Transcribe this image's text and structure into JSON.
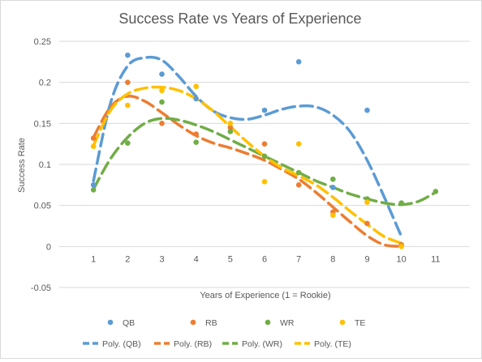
{
  "chart_data": {
    "type": "scatter",
    "title": "Success Rate vs Years of Experience",
    "xlabel": "Years of Experience (1 = Rookie)",
    "ylabel": "Success Rate",
    "xlim": [
      0,
      12
    ],
    "ylim": [
      -0.05,
      0.25
    ],
    "x_ticks": [
      1,
      2,
      3,
      4,
      5,
      6,
      7,
      8,
      9,
      10,
      11
    ],
    "x_tick_labels": [
      "1",
      "2",
      "3",
      "4",
      "5",
      "6",
      "7",
      "8",
      "9",
      "10",
      "11"
    ],
    "y_ticks": [
      -0.05,
      0,
      0.05,
      0.1,
      0.15,
      0.2,
      0.25
    ],
    "y_tick_labels": [
      "-0.05",
      "0",
      "0.05",
      "0.1",
      "0.15",
      "0.2",
      "0.25"
    ],
    "grid": "horizontal",
    "legend_position": "bottom",
    "series": [
      {
        "name": "QB",
        "color": "#5b9bd5",
        "points": [
          [
            1,
            0.075
          ],
          [
            2,
            0.233
          ],
          [
            3,
            0.21
          ],
          [
            4,
            0.18
          ],
          [
            5,
            0.145
          ],
          [
            6,
            0.166
          ],
          [
            7,
            0.225
          ],
          [
            8,
            0.072
          ],
          [
            9,
            0.166
          ],
          [
            10,
            0.002
          ]
        ]
      },
      {
        "name": "RB",
        "color": "#ed7d31",
        "points": [
          [
            1,
            0.132
          ],
          [
            2,
            0.2
          ],
          [
            3,
            0.15
          ],
          [
            4,
            0.137
          ],
          [
            5,
            0.145
          ],
          [
            6,
            0.125
          ],
          [
            7,
            0.075
          ],
          [
            8,
            0.042
          ],
          [
            9,
            0.028
          ],
          [
            10,
            0.002
          ]
        ]
      },
      {
        "name": "WR",
        "color": "#70ad47",
        "points": [
          [
            1,
            0.069
          ],
          [
            2,
            0.126
          ],
          [
            3,
            0.176
          ],
          [
            4,
            0.127
          ],
          [
            5,
            0.14
          ],
          [
            6,
            0.11
          ],
          [
            7,
            0.09
          ],
          [
            8,
            0.082
          ],
          [
            9,
            0.058
          ],
          [
            10,
            0.053
          ],
          [
            11,
            0.067
          ]
        ]
      },
      {
        "name": "TE",
        "color": "#ffc000",
        "points": [
          [
            1,
            0.122
          ],
          [
            2,
            0.172
          ],
          [
            3,
            0.19
          ],
          [
            4,
            0.195
          ],
          [
            5,
            0.15
          ],
          [
            6,
            0.079
          ],
          [
            7,
            0.125
          ],
          [
            8,
            0.038
          ],
          [
            9,
            0.054
          ],
          [
            10,
            0.0
          ]
        ]
      }
    ],
    "trendlines": [
      {
        "name": "Poly. (QB)",
        "color": "#5b9bd5",
        "points": [
          [
            1,
            0.08
          ],
          [
            1.5,
            0.175
          ],
          [
            2,
            0.22
          ],
          [
            2.5,
            0.23
          ],
          [
            3,
            0.227
          ],
          [
            3.5,
            0.207
          ],
          [
            4,
            0.183
          ],
          [
            4.5,
            0.165
          ],
          [
            5,
            0.157
          ],
          [
            5.5,
            0.155
          ],
          [
            6,
            0.16
          ],
          [
            6.5,
            0.167
          ],
          [
            7,
            0.171
          ],
          [
            7.5,
            0.17
          ],
          [
            8,
            0.16
          ],
          [
            8.5,
            0.14
          ],
          [
            9,
            0.105
          ],
          [
            9.5,
            0.06
          ],
          [
            10,
            0.012
          ]
        ]
      },
      {
        "name": "Poly. (RB)",
        "color": "#ed7d31",
        "points": [
          [
            1,
            0.133
          ],
          [
            1.5,
            0.17
          ],
          [
            2,
            0.183
          ],
          [
            2.5,
            0.177
          ],
          [
            3,
            0.163
          ],
          [
            3.5,
            0.148
          ],
          [
            4,
            0.135
          ],
          [
            4.5,
            0.126
          ],
          [
            5,
            0.12
          ],
          [
            5.5,
            0.113
          ],
          [
            6,
            0.105
          ],
          [
            6.5,
            0.094
          ],
          [
            7,
            0.082
          ],
          [
            7.5,
            0.066
          ],
          [
            8,
            0.048
          ],
          [
            8.5,
            0.03
          ],
          [
            9,
            0.013
          ],
          [
            9.5,
            0.002
          ],
          [
            10,
            0.0
          ]
        ]
      },
      {
        "name": "Poly. (WR)",
        "color": "#70ad47",
        "points": [
          [
            1,
            0.07
          ],
          [
            1.5,
            0.107
          ],
          [
            2,
            0.133
          ],
          [
            2.5,
            0.15
          ],
          [
            3,
            0.156
          ],
          [
            3.5,
            0.154
          ],
          [
            4,
            0.148
          ],
          [
            4.5,
            0.14
          ],
          [
            5,
            0.13
          ],
          [
            5.5,
            0.12
          ],
          [
            6,
            0.11
          ],
          [
            6.5,
            0.1
          ],
          [
            7,
            0.09
          ],
          [
            7.5,
            0.08
          ],
          [
            8,
            0.072
          ],
          [
            8.5,
            0.064
          ],
          [
            9,
            0.058
          ],
          [
            9.5,
            0.053
          ],
          [
            10,
            0.051
          ],
          [
            10.5,
            0.055
          ],
          [
            11,
            0.066
          ]
        ]
      },
      {
        "name": "Poly. (TE)",
        "color": "#ffc000",
        "points": [
          [
            1,
            0.123
          ],
          [
            1.5,
            0.166
          ],
          [
            2,
            0.186
          ],
          [
            2.5,
            0.193
          ],
          [
            3,
            0.194
          ],
          [
            3.5,
            0.19
          ],
          [
            4,
            0.18
          ],
          [
            4.5,
            0.165
          ],
          [
            5,
            0.146
          ],
          [
            5.5,
            0.127
          ],
          [
            6,
            0.11
          ],
          [
            6.5,
            0.096
          ],
          [
            7,
            0.086
          ],
          [
            7.5,
            0.075
          ],
          [
            8,
            0.06
          ],
          [
            8.5,
            0.043
          ],
          [
            9,
            0.027
          ],
          [
            9.5,
            0.012
          ],
          [
            10,
            0.004
          ]
        ]
      }
    ]
  }
}
